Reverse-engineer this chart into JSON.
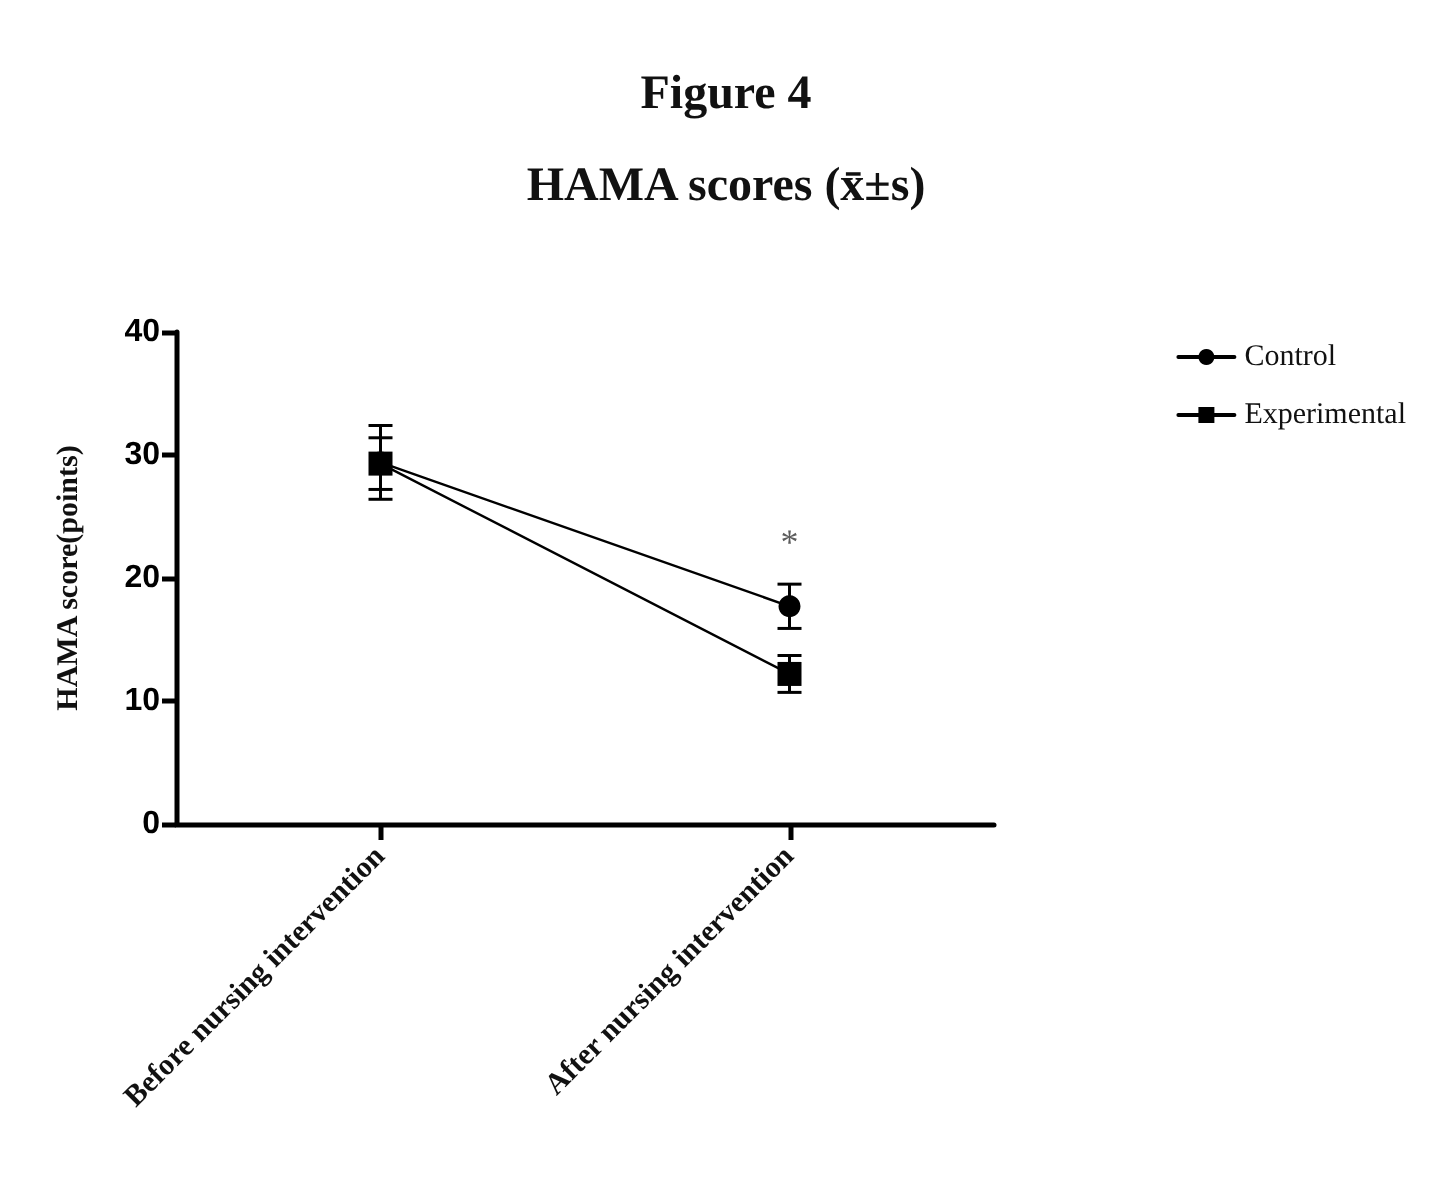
{
  "chart_data": {
    "type": "line",
    "title": "Figure 4",
    "subtitle": "HAMA scores (x̄±s)",
    "ylabel": "HAMA score(points)",
    "categories": [
      "Before nursing intervention",
      "After nursing intervention"
    ],
    "series": [
      {
        "name": "Control",
        "color": "#000000",
        "marker": "circle",
        "values": [
          29.4,
          17.7
        ],
        "errors": [
          3,
          1.8
        ]
      },
      {
        "name": "Experimental",
        "color": "#000000",
        "marker": "square",
        "values": [
          29.3,
          12.2
        ],
        "errors": [
          2.1,
          1.5
        ]
      }
    ],
    "annotations": [
      "*"
    ],
    "ylim": [
      0,
      40
    ],
    "yticks": [
      0,
      10,
      20,
      30,
      40
    ],
    "grid": false,
    "legend": "top right",
    "line_style": "solid"
  }
}
